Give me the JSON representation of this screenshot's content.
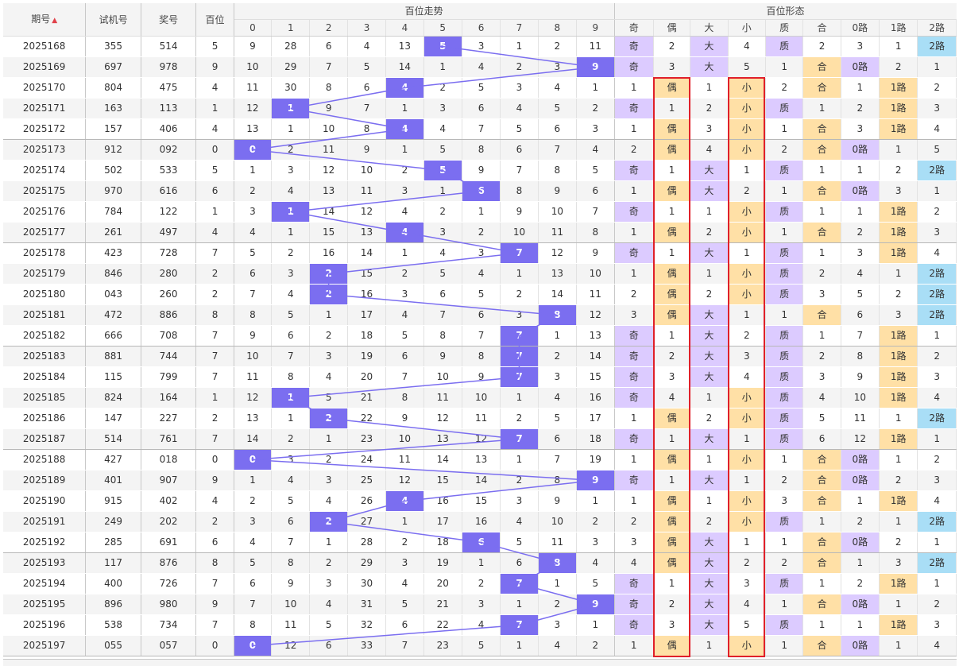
{
  "headers": {
    "period": "期号",
    "test_number": "试机号",
    "prize_number": "奖号",
    "hundreds_digit": "百位",
    "trend_group": "百位走势",
    "form_group": "百位形态",
    "trend_digits": [
      "0",
      "1",
      "2",
      "3",
      "4",
      "5",
      "6",
      "7",
      "8",
      "9"
    ],
    "form_columns": [
      "奇",
      "偶",
      "大",
      "小",
      "质",
      "合",
      "0路",
      "1路",
      "2路"
    ]
  },
  "sort_indicator": "▲",
  "colors": {
    "hit": "#7b6ef0",
    "line": "#7b6ef0",
    "purple_cell": "#dccbff",
    "orange_cell": "#ffe0a6",
    "blue_cell": "#a9def6",
    "highlight_box": "#e0202a"
  },
  "chart_data": {
    "type": "table",
    "title": "百位走势",
    "columns": [
      "期号",
      "试机号",
      "奖号",
      "百位",
      "0",
      "1",
      "2",
      "3",
      "4",
      "5",
      "6",
      "7",
      "8",
      "9",
      "奇",
      "偶",
      "大",
      "小",
      "质",
      "合",
      "0路",
      "1路",
      "2路"
    ],
    "highlighted_columns": [
      "偶",
      "小"
    ],
    "rows": [
      [
        "2025168",
        "355",
        "514",
        "5",
        [
          "9",
          "28",
          "6",
          "4",
          "13",
          "5",
          "3",
          "1",
          "2",
          "11"
        ],
        [
          "奇",
          "2",
          "大",
          "4",
          "质",
          "2",
          "3",
          "1",
          "2路"
        ]
      ],
      [
        "2025169",
        "697",
        "978",
        "9",
        [
          "10",
          "29",
          "7",
          "5",
          "14",
          "1",
          "4",
          "2",
          "3",
          "9"
        ],
        [
          "奇",
          "3",
          "大",
          "5",
          "1",
          "合",
          "0路",
          "2",
          "1"
        ]
      ],
      [
        "2025170",
        "804",
        "475",
        "4",
        [
          "11",
          "30",
          "8",
          "6",
          "4",
          "2",
          "5",
          "3",
          "4",
          "1"
        ],
        [
          "1",
          "偶",
          "小",
          "2",
          "合",
          "1",
          "1路",
          "2"
        ]
      ],
      [
        "2025171",
        "163",
        "113",
        "1",
        [
          "12",
          "1",
          "9",
          "7",
          "1",
          "3",
          "6",
          "4",
          "5",
          "2"
        ],
        [
          "奇",
          "1",
          "2",
          "小",
          "质",
          "1",
          "2",
          "1路",
          "3"
        ]
      ],
      [
        "2025172",
        "157",
        "406",
        "4",
        [
          "13",
          "1",
          "10",
          "8",
          "4",
          "4",
          "7",
          "5",
          "6",
          "3"
        ],
        [
          "1",
          "偶",
          "3",
          "小",
          "1",
          "合",
          "3",
          "1路",
          "4"
        ]
      ],
      [
        "2025173",
        "912",
        "092",
        "0",
        [
          "0",
          "2",
          "11",
          "9",
          "1",
          "5",
          "8",
          "6",
          "7",
          "4"
        ],
        [
          "2",
          "偶",
          "4",
          "小",
          "2",
          "合",
          "0路",
          "1",
          "5"
        ]
      ],
      [
        "2025174",
        "502",
        "533",
        "5",
        [
          "1",
          "3",
          "12",
          "10",
          "2",
          "5",
          "9",
          "7",
          "8",
          "5"
        ],
        [
          "奇",
          "1",
          "大",
          "1",
          "质",
          "1",
          "1",
          "2",
          "2路"
        ]
      ],
      [
        "2025175",
        "970",
        "616",
        "6",
        [
          "2",
          "4",
          "13",
          "11",
          "3",
          "1",
          "6",
          "8",
          "9",
          "6"
        ],
        [
          "1",
          "偶",
          "大",
          "2",
          "1",
          "合",
          "0路",
          "3",
          "1"
        ]
      ],
      [
        "2025176",
        "784",
        "122",
        "1",
        [
          "3",
          "1",
          "14",
          "12",
          "4",
          "2",
          "1",
          "9",
          "10",
          "7"
        ],
        [
          "奇",
          "1",
          "1",
          "小",
          "质",
          "1",
          "1",
          "1路",
          "2"
        ]
      ],
      [
        "2025177",
        "261",
        "497",
        "4",
        [
          "4",
          "1",
          "15",
          "13",
          "4",
          "3",
          "2",
          "10",
          "11",
          "8"
        ],
        [
          "1",
          "偶",
          "2",
          "小",
          "1",
          "合",
          "2",
          "1路",
          "3"
        ]
      ],
      [
        "2025178",
        "423",
        "728",
        "7",
        [
          "5",
          "2",
          "16",
          "14",
          "1",
          "4",
          "3",
          "7",
          "12",
          "9"
        ],
        [
          "奇",
          "1",
          "大",
          "1",
          "质",
          "1",
          "3",
          "1路",
          "4"
        ]
      ],
      [
        "2025179",
        "846",
        "280",
        "2",
        [
          "6",
          "3",
          "2",
          "15",
          "2",
          "5",
          "4",
          "1",
          "13",
          "10"
        ],
        [
          "1",
          "偶",
          "1",
          "小",
          "质",
          "2",
          "4",
          "1",
          "2路"
        ]
      ],
      [
        "2025180",
        "043",
        "260",
        "2",
        [
          "7",
          "4",
          "2",
          "16",
          "3",
          "6",
          "5",
          "2",
          "14",
          "11"
        ],
        [
          "2",
          "偶",
          "2",
          "小",
          "质",
          "3",
          "5",
          "2",
          "2路"
        ]
      ],
      [
        "2025181",
        "472",
        "886",
        "8",
        [
          "8",
          "5",
          "1",
          "17",
          "4",
          "7",
          "6",
          "3",
          "8",
          "12"
        ],
        [
          "3",
          "偶",
          "大",
          "1",
          "1",
          "合",
          "6",
          "3",
          "2路"
        ]
      ],
      [
        "2025182",
        "666",
        "708",
        "7",
        [
          "9",
          "6",
          "2",
          "18",
          "5",
          "8",
          "7",
          "7",
          "1",
          "13"
        ],
        [
          "奇",
          "1",
          "大",
          "2",
          "质",
          "1",
          "7",
          "1路",
          "1"
        ]
      ],
      [
        "2025183",
        "881",
        "744",
        "7",
        [
          "10",
          "7",
          "3",
          "19",
          "6",
          "9",
          "8",
          "7",
          "2",
          "14"
        ],
        [
          "奇",
          "2",
          "大",
          "3",
          "质",
          "2",
          "8",
          "1路",
          "2"
        ]
      ],
      [
        "2025184",
        "115",
        "799",
        "7",
        [
          "11",
          "8",
          "4",
          "20",
          "7",
          "10",
          "9",
          "7",
          "3",
          "15"
        ],
        [
          "奇",
          "3",
          "大",
          "4",
          "质",
          "3",
          "9",
          "1路",
          "3"
        ]
      ],
      [
        "2025185",
        "824",
        "164",
        "1",
        [
          "12",
          "1",
          "5",
          "21",
          "8",
          "11",
          "10",
          "1",
          "4",
          "16"
        ],
        [
          "奇",
          "4",
          "1",
          "小",
          "质",
          "4",
          "10",
          "1路",
          "4"
        ]
      ],
      [
        "2025186",
        "147",
        "227",
        "2",
        [
          "13",
          "1",
          "2",
          "22",
          "9",
          "12",
          "11",
          "2",
          "5",
          "17"
        ],
        [
          "1",
          "偶",
          "2",
          "小",
          "质",
          "5",
          "11",
          "1",
          "2路"
        ]
      ],
      [
        "2025187",
        "514",
        "761",
        "7",
        [
          "14",
          "2",
          "1",
          "23",
          "10",
          "13",
          "12",
          "7",
          "6",
          "18"
        ],
        [
          "奇",
          "1",
          "大",
          "1",
          "质",
          "6",
          "12",
          "1路",
          "1"
        ]
      ],
      [
        "2025188",
        "427",
        "018",
        "0",
        [
          "0",
          "3",
          "2",
          "24",
          "11",
          "14",
          "13",
          "1",
          "7",
          "19"
        ],
        [
          "1",
          "偶",
          "1",
          "小",
          "1",
          "合",
          "0路",
          "1",
          "2"
        ]
      ],
      [
        "2025189",
        "401",
        "907",
        "9",
        [
          "1",
          "4",
          "3",
          "25",
          "12",
          "15",
          "14",
          "2",
          "8",
          "9"
        ],
        [
          "奇",
          "1",
          "大",
          "1",
          "2",
          "合",
          "0路",
          "2",
          "3"
        ]
      ],
      [
        "2025190",
        "915",
        "402",
        "4",
        [
          "2",
          "5",
          "4",
          "26",
          "4",
          "16",
          "15",
          "3",
          "9",
          "1"
        ],
        [
          "1",
          "偶",
          "1",
          "小",
          "3",
          "合",
          "1",
          "1路",
          "4"
        ]
      ],
      [
        "2025191",
        "249",
        "202",
        "2",
        [
          "3",
          "6",
          "2",
          "27",
          "1",
          "17",
          "16",
          "4",
          "10",
          "2"
        ],
        [
          "2",
          "偶",
          "2",
          "小",
          "质",
          "1",
          "2",
          "1",
          "2路"
        ]
      ],
      [
        "2025192",
        "285",
        "691",
        "6",
        [
          "4",
          "7",
          "1",
          "28",
          "2",
          "18",
          "6",
          "5",
          "11",
          "3"
        ],
        [
          "3",
          "偶",
          "大",
          "1",
          "1",
          "合",
          "0路",
          "2",
          "1"
        ]
      ],
      [
        "2025193",
        "117",
        "876",
        "8",
        [
          "5",
          "8",
          "2",
          "29",
          "3",
          "19",
          "1",
          "6",
          "8",
          "4"
        ],
        [
          "4",
          "偶",
          "大",
          "2",
          "2",
          "合",
          "1",
          "3",
          "2路"
        ]
      ],
      [
        "2025194",
        "400",
        "726",
        "7",
        [
          "6",
          "9",
          "3",
          "30",
          "4",
          "20",
          "2",
          "7",
          "1",
          "5"
        ],
        [
          "奇",
          "1",
          "大",
          "3",
          "质",
          "1",
          "2",
          "1路",
          "1"
        ]
      ],
      [
        "2025195",
        "896",
        "980",
        "9",
        [
          "7",
          "10",
          "4",
          "31",
          "5",
          "21",
          "3",
          "1",
          "2",
          "9"
        ],
        [
          "奇",
          "2",
          "大",
          "4",
          "1",
          "合",
          "0路",
          "1",
          "2"
        ]
      ],
      [
        "2025196",
        "538",
        "734",
        "7",
        [
          "8",
          "11",
          "5",
          "32",
          "6",
          "22",
          "4",
          "7",
          "3",
          "1"
        ],
        [
          "奇",
          "3",
          "大",
          "5",
          "质",
          "1",
          "1",
          "1路",
          "3"
        ]
      ],
      [
        "2025197",
        "055",
        "057",
        "0",
        [
          "0",
          "12",
          "6",
          "33",
          "7",
          "23",
          "5",
          "1",
          "4",
          "2"
        ],
        [
          "1",
          "偶",
          "1",
          "小",
          "1",
          "合",
          "0路",
          "1",
          "4"
        ]
      ]
    ]
  }
}
